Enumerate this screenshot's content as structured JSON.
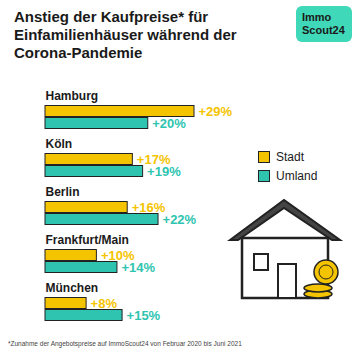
{
  "chart_data": {
    "type": "bar",
    "orientation": "horizontal",
    "title": "Anstieg der Kaufpreise* für Einfamilienhäuser während der Corona-Pandemie",
    "logo": [
      "Immo",
      "Scout24"
    ],
    "footnote": "*Zunahme der Angebotspreise auf ImmoScout24 von Februar 2020 bis Juni 2021",
    "categories": [
      "Hamburg",
      "Köln",
      "Berlin",
      "Frankfurt/Main",
      "München"
    ],
    "series": [
      {
        "name": "Stadt",
        "color": "#f5c400",
        "values": [
          29,
          17,
          16,
          10,
          8
        ],
        "value_labels": [
          "+29%",
          "+17%",
          "+16%",
          "+10%",
          "+8%"
        ]
      },
      {
        "name": "Umland",
        "color": "#2ec4b0",
        "values": [
          20,
          19,
          22,
          14,
          15
        ],
        "value_labels": [
          "+20%",
          "+19%",
          "+22%",
          "+14%",
          "+15%"
        ]
      }
    ],
    "data_labels": true,
    "tick_labels": false,
    "grid": false,
    "legend": "right"
  }
}
